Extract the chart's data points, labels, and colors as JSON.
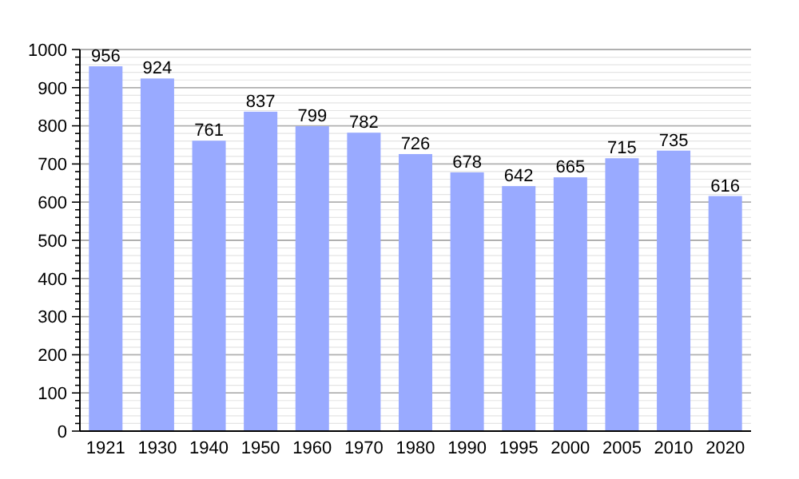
{
  "chart_data": {
    "type": "bar",
    "categories": [
      "1921",
      "1930",
      "1940",
      "1950",
      "1960",
      "1970",
      "1980",
      "1990",
      "1995",
      "2000",
      "2005",
      "2010",
      "2020"
    ],
    "values": [
      956,
      924,
      761,
      837,
      799,
      782,
      726,
      678,
      642,
      665,
      715,
      735,
      616
    ],
    "color": "#99aaff",
    "ylim": [
      0,
      1000
    ],
    "yticks": [
      0,
      {
        "value": 20,
        "label": null
      },
      {
        "value": 40,
        "label": null
      },
      {
        "value": 60,
        "label": null
      },
      {
        "value": 80,
        "label": null
      },
      100,
      {
        "value": 120,
        "label": null
      },
      {
        "value": 140,
        "label": null
      },
      {
        "value": 160,
        "label": null
      },
      {
        "value": 180,
        "label": null
      },
      200,
      {
        "value": 220,
        "label": null
      },
      {
        "value": 240,
        "label": null
      },
      {
        "value": 260,
        "label": null
      },
      {
        "value": 280,
        "label": null
      },
      300,
      {
        "value": 320,
        "label": null
      },
      {
        "value": 340,
        "label": null
      },
      {
        "value": 360,
        "label": null
      },
      {
        "value": 380,
        "label": null
      },
      400,
      {
        "value": 420,
        "label": null
      },
      {
        "value": 440,
        "label": null
      },
      {
        "value": 460,
        "label": null
      },
      {
        "value": 480,
        "label": null
      },
      500,
      {
        "value": 520,
        "label": null
      },
      {
        "value": 540,
        "label": null
      },
      {
        "value": 560,
        "label": null
      },
      {
        "value": 580,
        "label": null
      },
      600,
      {
        "value": 620,
        "label": null
      },
      {
        "value": 640,
        "label": null
      },
      {
        "value": 660,
        "label": null
      },
      {
        "value": 680,
        "label": null
      },
      700,
      {
        "value": 720,
        "label": null
      },
      {
        "value": 740,
        "label": null
      },
      {
        "value": 760,
        "label": null
      },
      {
        "value": 780,
        "label": null
      },
      800,
      {
        "value": 820,
        "label": null
      },
      {
        "value": 840,
        "label": null
      },
      {
        "value": 860,
        "label": null
      },
      {
        "value": 880,
        "label": null
      },
      900,
      {
        "value": 920,
        "label": null
      },
      {
        "value": 940,
        "label": null
      },
      {
        "value": 960,
        "label": null
      },
      {
        "value": 980,
        "label": null
      },
      1000
    ],
    "grid": true,
    "data_labels": true
  }
}
